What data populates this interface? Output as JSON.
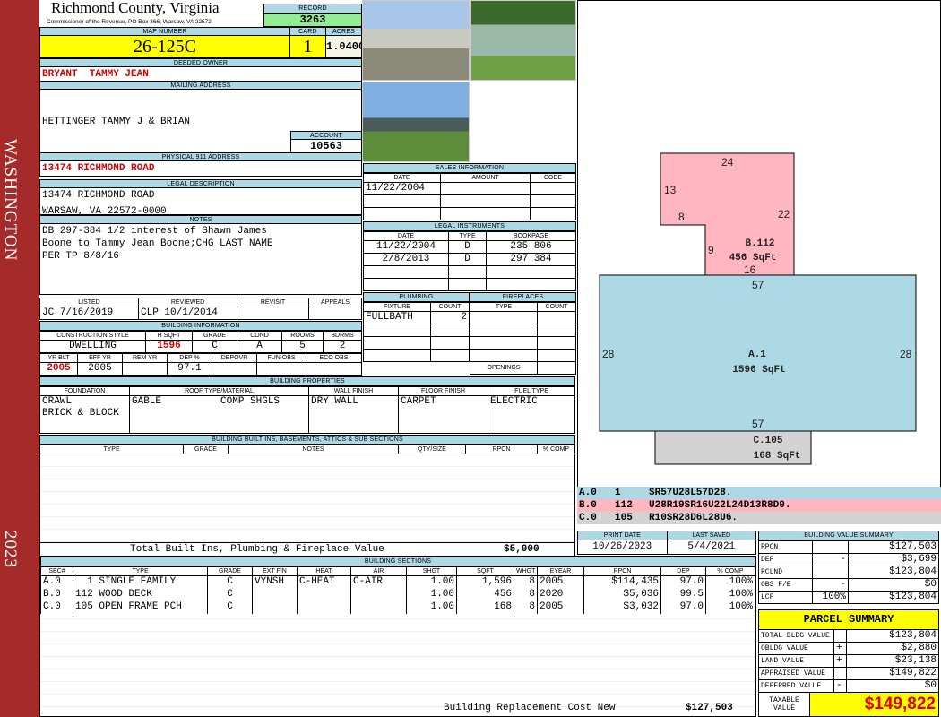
{
  "sidebar": {
    "district": "WASHINGTON",
    "year": "2023",
    "color": "#a52a2a"
  },
  "header": {
    "county": "Richmond County, Virginia",
    "office": "Commissioner of the Revenue, PO Box 366, Warsaw, VA 22572",
    "record_label": "RECORD",
    "record": "3263"
  },
  "parcel": {
    "map_label": "MAP NUMBER",
    "map": "26-125C",
    "card_label": "CARD",
    "card": "1",
    "acres_label": "ACRES",
    "acres": "1.0400"
  },
  "owner": {
    "label": "DEEDED OWNER",
    "name": "BRYANT  TAMMY JEAN"
  },
  "mailing": {
    "label": "MAILING ADDRESS",
    "line1": "HETTINGER TAMMY J & BRIAN",
    "line2": "13474 RICHMOND ROAD",
    "line3": "WARSAW, VA 22572-0000",
    "account_label": "ACCOUNT",
    "account": "10563"
  },
  "physical": {
    "label": "PHYSICAL 911 ADDRESS",
    "value": "13474 RICHMOND ROAD"
  },
  "legal": {
    "label": "LEGAL DESCRIPTION",
    "value": "13474 RICHMOND ROAD"
  },
  "notes": {
    "label": "NOTES",
    "value": "DB 297-384 1/2 interest of Shawn James\nBoone to Tammy Jean Boone;CHG LAST NAME\nPER TP 8/8/16"
  },
  "review": {
    "headers": [
      "LISTED",
      "REVIEWED",
      "REVISIT",
      "APPEALS"
    ],
    "values": [
      "JC     7/16/2019",
      "CLP   10/1/2014",
      "",
      ""
    ]
  },
  "building_info": {
    "label": "BUILDING INFORMATION",
    "h1": [
      "CONSTRUCTION STYLE",
      "H SQFT",
      "GRADE",
      "COND",
      "ROOMS",
      "BDRMS"
    ],
    "v1": [
      "DWELLING",
      "1596",
      "C",
      "A",
      "5",
      "2"
    ],
    "h2": [
      "YR BLT",
      "EFF YR",
      "REM YR",
      "DEP %",
      "DEPOVR",
      "FUN OBS",
      "ECO OBS"
    ],
    "v2": [
      "2005",
      "2005",
      "",
      "97.1",
      "",
      "",
      ""
    ]
  },
  "properties": {
    "label": "BUILDING PROPERTIES",
    "headers": [
      "FOUNDATION",
      "ROOF TYPE/MATERIAL",
      "WALL FINISH",
      "FLOOR FINISH",
      "FUEL TYPE"
    ],
    "values": [
      "CRAWL\nBRICK & BLOCK",
      "GABLE          COMP SHGLS",
      "DRY WALL",
      "CARPET",
      "ELECTRIC"
    ]
  },
  "builtins": {
    "label": "BUILDING BUILT INS, BASEMENTS, ATTICS & SUB SECTIONS",
    "headers": [
      "TYPE",
      "GRADE",
      "NOTES",
      "QTY/SIZE",
      "RPCN",
      "% COMP"
    ],
    "total_label": "Total Built Ins, Plumbing & Fireplace Value",
    "total": "$5,000"
  },
  "photos": [
    "house-with-truck",
    "shed-on-lawn",
    "house-front"
  ],
  "sales": {
    "label": "SALES INFORMATION",
    "headers": [
      "DATE",
      "AMOUNT",
      "CODE"
    ],
    "rows": [
      [
        "11/22/2004",
        "",
        ""
      ],
      [
        "",
        "",
        ""
      ],
      [
        "",
        "",
        ""
      ]
    ]
  },
  "instruments": {
    "label": "LEGAL INSTRUMENTS",
    "headers": [
      "DATE",
      "TYPE",
      "BOOKPAGE"
    ],
    "rows": [
      [
        "11/22/2004",
        "D",
        "235 806"
      ],
      [
        "2/8/2013",
        "D",
        "297 384"
      ],
      [
        "",
        "",
        ""
      ],
      [
        "",
        "",
        ""
      ]
    ]
  },
  "plumbing": {
    "label": "PLUMBING",
    "headers": [
      "FIXTURE",
      "COUNT"
    ],
    "rows": [
      [
        "FULLBATH",
        "2"
      ],
      [
        "",
        ""
      ],
      [
        "",
        ""
      ],
      [
        "",
        ""
      ]
    ]
  },
  "fireplaces": {
    "label": "FIREPLACES",
    "headers": [
      "TYPE",
      "COUNT"
    ],
    "openings_label": "OPENINGS"
  },
  "sketch": {
    "A": {
      "label": "A.1",
      "area": "1596 SqFt",
      "top": "57",
      "bottom": "57",
      "left": "28",
      "right": "28",
      "color": "#add8e6"
    },
    "B": {
      "label": "B.112",
      "area": "456 SqFt",
      "d24": "24",
      "d13": "13",
      "d8": "8",
      "d22": "22",
      "d9": "9",
      "d16": "16",
      "color": "#ffb6c1"
    },
    "C": {
      "label": "C.105",
      "area": "168 SqFt",
      "color": "#d3d3d3"
    },
    "codes": [
      [
        "A.0",
        "1",
        "SR57U28L57D28."
      ],
      [
        "B.0",
        "112",
        "U28R19SR16U22L24D13R8D9."
      ],
      [
        "C.0",
        "105",
        "R10SR28D6L28U6."
      ]
    ]
  },
  "dates": {
    "print_label": "PRINT DATE",
    "print": "10/26/2023",
    "saved_label": "LAST SAVED",
    "saved": "5/4/2021"
  },
  "sections": {
    "label": "BUILDING SECTIONS",
    "headers": [
      "SEC#",
      "TYPE",
      "GRADE",
      "EXT FIN",
      "HEAT",
      "AIR",
      "SHGT",
      "SQFT",
      "WHGT",
      "EYEAR",
      "RPCN",
      "DEP",
      "% COMP"
    ],
    "rows": [
      [
        "A.0",
        "  1 SINGLE FAMILY",
        "C",
        "VYNSH",
        "C-HEAT",
        "C-AIR",
        "1.00",
        "1,596",
        "8",
        "2005",
        "$114,435",
        "97.0",
        "100%"
      ],
      [
        "B.0",
        "112 WOOD DECK",
        "C",
        "",
        "",
        "",
        "1.00",
        "456",
        "8",
        "2020",
        "$5,036",
        "99.5",
        "100%"
      ],
      [
        "C.0",
        "105 OPEN FRAME PCH",
        "C",
        "",
        "",
        "",
        "1.00",
        "168",
        "8",
        "2005",
        "$3,032",
        "97.0",
        "100%"
      ]
    ],
    "replacement_label": "Building Replacement Cost New",
    "replacement": "$127,503"
  },
  "value_summary": {
    "label": "BUILDING VALUE SUMMARY",
    "rows": [
      [
        "RPCN",
        "",
        "$127,503"
      ],
      [
        "DEP",
        "-",
        "$3,699"
      ],
      [
        "RCLND",
        "",
        "$123,804"
      ],
      [
        "OBS F/E",
        "-",
        "$0"
      ],
      [
        "LCF",
        "100%",
        "$123,804"
      ]
    ]
  },
  "parcel_summary": {
    "label": "PARCEL SUMMARY",
    "rows": [
      [
        "TOTAL BLDG VALUE",
        "",
        "$123,804"
      ],
      [
        "OBLDG VALUE",
        "+",
        "$2,880"
      ],
      [
        "LAND VALUE",
        "+",
        "$23,138"
      ],
      [
        "APPRAISED VALUE",
        "",
        "$149,822"
      ],
      [
        "DEFERRED VALUE",
        "-",
        "$0"
      ]
    ],
    "taxable_label": "TAXABLE VALUE",
    "taxable": "$149,822"
  }
}
